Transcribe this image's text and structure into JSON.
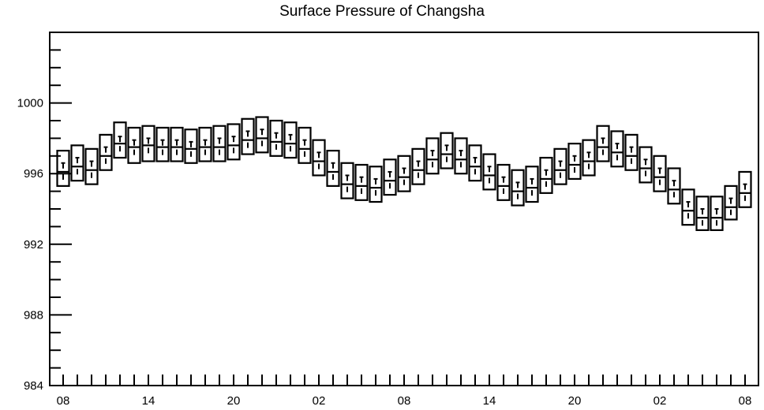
{
  "chart_data": {
    "type": "box",
    "title": "Surface Pressure of Changsha",
    "xlabel": "",
    "ylabel": "",
    "ylim": [
      984,
      1004
    ],
    "yticks": [
      984,
      988,
      992,
      996,
      1000
    ],
    "xtick_labels": [
      "08",
      "14",
      "20",
      "02",
      "08",
      "14",
      "20",
      "02",
      "08"
    ],
    "grid": false,
    "series": [
      {
        "values_upper": [
          997.3,
          997.6,
          997.4,
          998.2,
          998.9,
          998.6,
          998.7,
          998.6,
          998.6,
          998.5,
          998.6,
          998.7,
          998.8,
          999.1,
          999.2,
          999.0,
          998.9,
          998.6,
          997.9,
          997.3,
          996.6,
          996.5,
          996.4,
          996.8,
          997.0,
          997.4,
          998.0,
          998.3,
          998.0,
          997.6,
          997.1,
          996.5,
          996.2,
          996.4,
          996.9,
          997.4,
          997.7,
          997.9,
          998.7,
          998.4,
          998.2,
          997.5,
          997.0,
          996.3,
          995.1,
          994.7,
          994.7,
          995.3,
          996.1
        ],
        "values_mid": [
          996.1,
          996.4,
          996.2,
          997.0,
          997.7,
          997.5,
          997.6,
          997.5,
          997.5,
          997.4,
          997.5,
          997.5,
          997.6,
          997.9,
          998.0,
          997.8,
          997.7,
          997.4,
          996.7,
          996.1,
          995.4,
          995.3,
          995.2,
          995.6,
          995.8,
          996.2,
          996.8,
          997.1,
          996.8,
          996.4,
          995.9,
          995.3,
          995.0,
          995.2,
          995.7,
          996.2,
          996.5,
          996.7,
          997.5,
          997.2,
          997.0,
          996.3,
          995.8,
          995.1,
          993.9,
          993.5,
          993.5,
          994.1,
          994.9
        ],
        "values_lower": [
          995.3,
          995.6,
          995.4,
          996.2,
          996.9,
          996.6,
          996.7,
          996.7,
          996.7,
          996.6,
          996.7,
          996.7,
          996.8,
          997.1,
          997.2,
          997.0,
          996.9,
          996.6,
          995.9,
          995.3,
          994.6,
          994.5,
          994.4,
          994.8,
          995.0,
          995.4,
          996.0,
          996.3,
          996.0,
          995.6,
          995.1,
          994.5,
          994.2,
          994.4,
          994.9,
          995.4,
          995.7,
          995.9,
          996.7,
          996.4,
          996.2,
          995.5,
          995.0,
          994.3,
          993.1,
          992.8,
          992.8,
          993.4,
          994.1
        ],
        "values_marker": [
          996.6,
          996.9,
          996.7,
          997.5,
          998.1,
          997.9,
          998.0,
          997.9,
          997.9,
          997.8,
          997.9,
          998.0,
          998.1,
          998.4,
          998.5,
          998.3,
          998.2,
          997.9,
          997.2,
          996.6,
          995.9,
          995.8,
          995.7,
          996.1,
          996.3,
          996.7,
          997.3,
          997.6,
          997.3,
          996.9,
          996.4,
          995.8,
          995.5,
          995.7,
          996.2,
          996.7,
          997.0,
          997.2,
          998.0,
          997.7,
          997.5,
          996.8,
          996.3,
          995.6,
          994.4,
          994.0,
          994.0,
          994.6,
          995.4
        ]
      }
    ]
  }
}
